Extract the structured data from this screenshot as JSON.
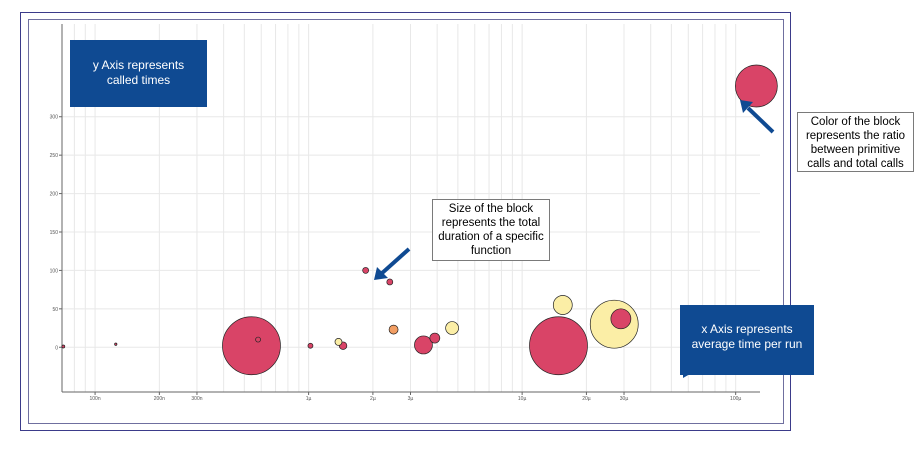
{
  "chart_data": {
    "type": "scatter",
    "title": "",
    "xlabel": "",
    "ylabel": "",
    "x_scale": "log",
    "x_unit": "seconds",
    "xlim": [
      7e-08,
      0.00013
    ],
    "ylim": [
      -40,
      340
    ],
    "grid": true,
    "legend": "none",
    "x_ticks": [
      {
        "value": 1e-07,
        "label": "100n"
      },
      {
        "value": 2e-07,
        "label": "200n"
      },
      {
        "value": 3e-07,
        "label": "300n"
      },
      {
        "value": 1e-06,
        "label": "1µ"
      },
      {
        "value": 2e-06,
        "label": "2µ"
      },
      {
        "value": 3e-06,
        "label": "3µ"
      },
      {
        "value": 1e-05,
        "label": "10µ"
      },
      {
        "value": 2e-05,
        "label": "20µ"
      },
      {
        "value": 3e-05,
        "label": "30µ"
      },
      {
        "value": 0.0001,
        "label": "100µ"
      }
    ],
    "y_ticks": [
      {
        "value": 0,
        "label": "0"
      },
      {
        "value": 50,
        "label": "50"
      },
      {
        "value": 100,
        "label": "100"
      },
      {
        "value": 150,
        "label": "150"
      },
      {
        "value": 200,
        "label": "200"
      },
      {
        "value": 250,
        "label": "250"
      },
      {
        "value": 300,
        "label": "300"
      }
    ],
    "points": [
      {
        "x": 7.1e-08,
        "y": 1,
        "r": 1.5,
        "ratio": "high",
        "color": "#d94467"
      },
      {
        "x": 1.25e-07,
        "y": 4,
        "r": 1.2,
        "ratio": "high",
        "color": "#d94467"
      },
      {
        "x": 5.4e-07,
        "y": 2,
        "r": 29,
        "ratio": "high",
        "color": "#d94467"
      },
      {
        "x": 5.8e-07,
        "y": 10,
        "r": 2.5,
        "ratio": "high",
        "color": "#d94467"
      },
      {
        "x": 1.02e-06,
        "y": 2,
        "r": 2.5,
        "ratio": "high",
        "color": "#d94467"
      },
      {
        "x": 1.38e-06,
        "y": 7,
        "r": 3.5,
        "ratio": "low",
        "color": "#fbeea6"
      },
      {
        "x": 1.45e-06,
        "y": 2,
        "r": 3.8,
        "ratio": "high",
        "color": "#d94467"
      },
      {
        "x": 1.85e-06,
        "y": 100,
        "r": 3,
        "ratio": "high",
        "color": "#d94467"
      },
      {
        "x": 2.4e-06,
        "y": 85,
        "r": 3,
        "ratio": "high",
        "color": "#d94467"
      },
      {
        "x": 2.5e-06,
        "y": 23,
        "r": 4.5,
        "ratio": "mid",
        "color": "#f29e63"
      },
      {
        "x": 3.45e-06,
        "y": 3,
        "r": 9,
        "ratio": "high",
        "color": "#d94467"
      },
      {
        "x": 3.9e-06,
        "y": 12,
        "r": 5,
        "ratio": "high",
        "color": "#d94467"
      },
      {
        "x": 4.7e-06,
        "y": 25,
        "r": 6.5,
        "ratio": "low",
        "color": "#fbeea6"
      },
      {
        "x": 1.55e-05,
        "y": 55,
        "r": 9.5,
        "ratio": "low",
        "color": "#fbeea6"
      },
      {
        "x": 1.48e-05,
        "y": 2,
        "r": 29,
        "ratio": "high",
        "color": "#d94467"
      },
      {
        "x": 2.7e-05,
        "y": 30,
        "r": 24,
        "ratio": "low",
        "color": "#fbeea6"
      },
      {
        "x": 2.9e-05,
        "y": 37,
        "r": 10,
        "ratio": "high",
        "color": "#d94467"
      },
      {
        "x": 0.000125,
        "y": 340,
        "r": 21,
        "ratio": "high",
        "color": "#d94467"
      }
    ]
  },
  "annotations": {
    "y_axis_callout": "y Axis represents called times",
    "x_axis_callout": "x Axis represents average time per run",
    "size_note": "Size of the block represents the total duration of a specific function",
    "color_note": "Color of the block represents the ratio between primitive calls and total calls"
  },
  "colors": {
    "callout_fill": "#0f4a92",
    "arrow": "#0f4a92",
    "frame": "#3b3b8a",
    "high_ratio": "#d94467",
    "mid_ratio": "#f29e63",
    "low_ratio": "#fbeea6"
  }
}
